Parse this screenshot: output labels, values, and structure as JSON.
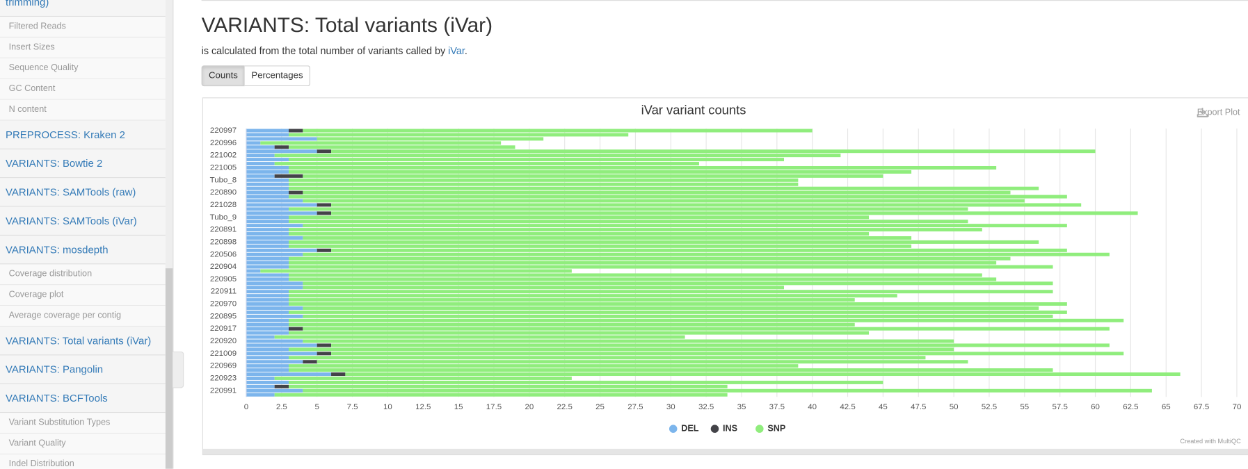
{
  "sidebar": [
    {
      "title": "trimming)",
      "children": [
        "Filtered Reads",
        "Insert Sizes",
        "Sequence Quality",
        "GC Content",
        "N content"
      ]
    },
    {
      "title": "PREPROCESS: Kraken 2",
      "children": []
    },
    {
      "title": "VARIANTS: Bowtie 2",
      "children": []
    },
    {
      "title": "VARIANTS: SAMTools (raw)",
      "children": []
    },
    {
      "title": "VARIANTS: SAMTools (iVar)",
      "children": []
    },
    {
      "title": "VARIANTS: mosdepth",
      "children": [
        "Coverage distribution",
        "Coverage plot",
        "Average coverage per contig"
      ]
    },
    {
      "title": "VARIANTS: Total variants (iVar)",
      "children": []
    },
    {
      "title": "VARIANTS: Pangolin",
      "children": []
    },
    {
      "title": "VARIANTS: BCFTools",
      "children": [
        "Variant Substitution Types",
        "Variant Quality",
        "Indel Distribution"
      ]
    }
  ],
  "header": {
    "title": "VARIANTS: Total variants (iVar)",
    "description": "is calculated from the total number of variants called by",
    "link": "iVar",
    "period": ".",
    "buttons": [
      "Counts",
      "Percentages"
    ],
    "export": "Export Plot",
    "credit": "Created with MultiQC"
  },
  "chart_data": {
    "type": "stacked-bar-horizontal",
    "title": "iVar variant counts",
    "categories": [
      "220997",
      null,
      null,
      "220996",
      null,
      null,
      "221002",
      null,
      null,
      "221005",
      null,
      null,
      "Tubo_8",
      null,
      null,
      "220890",
      null,
      null,
      "221028",
      null,
      null,
      "Tubo_9",
      null,
      null,
      "220891",
      null,
      null,
      "220898",
      null,
      null,
      "220506",
      null,
      null,
      "220904",
      null,
      null,
      "220905",
      null,
      null,
      "220911",
      null,
      null,
      "220970",
      null,
      null,
      "220895",
      null,
      null,
      "220917",
      null,
      null,
      "220920",
      null,
      null,
      "221009",
      null,
      null,
      "220969",
      null,
      null,
      "220923",
      null,
      null,
      "220991",
      null
    ],
    "series": [
      {
        "name": "DEL",
        "color": "#7cb5ec",
        "values": [
          3,
          3,
          5,
          1,
          2,
          5,
          2,
          3,
          2,
          3,
          3,
          2,
          3,
          3,
          3,
          3,
          3,
          4,
          5,
          3,
          5,
          3,
          3,
          4,
          3,
          3,
          4,
          3,
          3,
          5,
          4,
          3,
          3,
          3,
          1,
          3,
          3,
          4,
          4,
          3,
          3,
          3,
          3,
          4,
          3,
          4,
          3,
          3,
          3,
          3,
          2,
          4,
          5,
          3,
          5,
          3,
          4,
          3,
          3,
          6,
          2,
          3,
          2,
          4,
          2
        ]
      },
      {
        "name": "INS",
        "color": "#434348",
        "values": [
          1,
          0,
          0,
          0,
          1,
          1,
          0,
          0,
          0,
          0,
          0,
          2,
          0,
          0,
          0,
          1,
          0,
          0,
          1,
          0,
          1,
          0,
          0,
          0,
          0,
          0,
          0,
          0,
          0,
          1,
          0,
          0,
          0,
          0,
          0,
          0,
          0,
          0,
          0,
          0,
          0,
          0,
          0,
          0,
          0,
          0,
          0,
          0,
          1,
          0,
          0,
          0,
          1,
          0,
          1,
          0,
          1,
          0,
          0,
          1,
          0,
          0,
          1,
          0,
          0
        ]
      },
      {
        "name": "SNP",
        "color": "#90ed7d",
        "values": [
          36,
          24,
          16,
          17,
          16,
          54,
          40,
          35,
          30,
          50,
          44,
          41,
          36,
          36,
          53,
          50,
          55,
          51,
          53,
          48,
          57,
          41,
          48,
          54,
          49,
          41,
          43,
          53,
          44,
          52,
          57,
          51,
          50,
          54,
          22,
          49,
          50,
          53,
          34,
          54,
          43,
          40,
          55,
          52,
          55,
          53,
          59,
          40,
          57,
          41,
          29,
          46,
          55,
          47,
          56,
          45,
          46,
          36,
          54,
          59,
          21,
          42,
          31,
          60,
          32
        ]
      }
    ],
    "xlim": [
      0,
      70
    ],
    "xticks": [
      0,
      2.5,
      5,
      7.5,
      10,
      12.5,
      15,
      17.5,
      20,
      22.5,
      25,
      27.5,
      30,
      32.5,
      35,
      37.5,
      40,
      42.5,
      45,
      47.5,
      50,
      52.5,
      55,
      57.5,
      60,
      62.5,
      65,
      67.5,
      70
    ],
    "grid": true
  }
}
